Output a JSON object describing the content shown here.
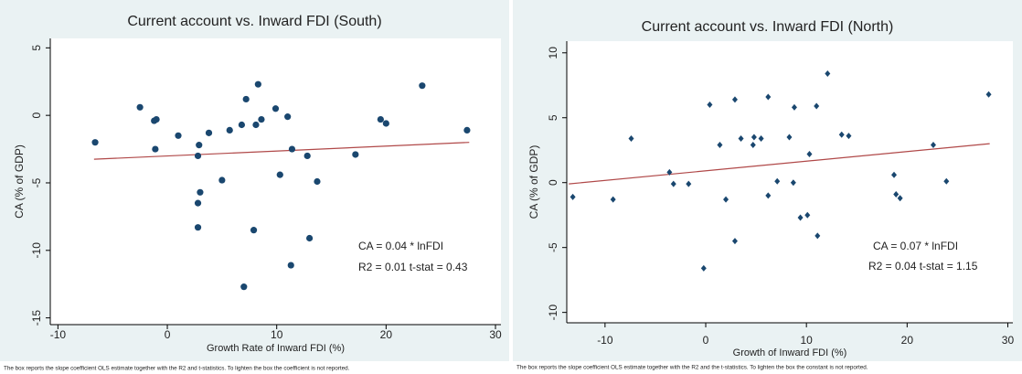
{
  "chart_data": [
    {
      "type": "scatter",
      "title": "Current account vs. Inward FDI (South)",
      "x_label": "Growth Rate of Inward FDI (%)",
      "y_label": "CA (% of GDP)",
      "marker": "circle",
      "color": "#1a476f",
      "x": [
        -6.6,
        -2.5,
        -1.2,
        -1.0,
        -1.1,
        1.0,
        2.9,
        2.8,
        3.0,
        2.8,
        2.8,
        3.8,
        5.0,
        5.7,
        6.8,
        7.2,
        8.1,
        8.3,
        8.6,
        7.9,
        9.9,
        11.0,
        10.3,
        11.4,
        12.8,
        13.7,
        13.0,
        11.3,
        7.0,
        17.2,
        19.5,
        20.0,
        23.3,
        27.4
      ],
      "values": [
        -2.0,
        0.6,
        -0.4,
        -0.3,
        -2.5,
        -1.5,
        -2.2,
        -3.0,
        -5.7,
        -6.5,
        -8.3,
        -1.3,
        -4.8,
        -1.1,
        -0.7,
        1.2,
        -0.7,
        2.3,
        -0.3,
        -8.5,
        0.5,
        -0.1,
        -4.4,
        -2.5,
        -3.0,
        -4.9,
        -9.1,
        -11.1,
        -12.7,
        -2.9,
        -0.3,
        -0.6,
        2.2,
        -1.1
      ],
      "trend_line": {
        "color": "#b04848",
        "x": [
          -6.7,
          27.6
        ],
        "values": [
          -3.25,
          -2.0
        ]
      },
      "annotations": [
        "CA = 0.04 * lnFDI",
        "R2 = 0.01   t-stat = 0.43"
      ],
      "footnote": "The box reports the slope coefficient OLS estimate together with the R2 and t-statistics. To lighten the box the coefficient is not reported.",
      "xlim": [
        -10.7,
        30.5
      ],
      "xticks": [
        -10,
        0,
        10,
        20,
        30
      ],
      "ylim": [
        -15.5,
        5.7
      ],
      "yticks": [
        -15,
        -10,
        -5,
        0,
        5
      ]
    },
    {
      "type": "scatter",
      "title": "Current account vs. Inward FDI (North)",
      "x_label": "Growth of Inward FDI (%)",
      "y_label": "CA (% of GDP)",
      "marker": "diamond",
      "color": "#1a476f",
      "x": [
        -13.2,
        -9.2,
        -7.4,
        -3.6,
        -3.2,
        -1.7,
        -0.2,
        0.4,
        1.4,
        2.0,
        2.9,
        2.9,
        3.5,
        4.8,
        4.7,
        5.5,
        6.2,
        6.2,
        7.1,
        8.3,
        8.8,
        8.7,
        9.4,
        10.1,
        10.3,
        11.0,
        11.1,
        12.1,
        13.5,
        14.2,
        18.7,
        18.9,
        19.3,
        22.6,
        23.9,
        28.1
      ],
      "values": [
        -1.1,
        -1.3,
        3.4,
        0.8,
        -0.1,
        -0.1,
        -6.6,
        6.0,
        2.9,
        -1.3,
        6.4,
        -4.5,
        3.4,
        3.5,
        2.9,
        3.4,
        6.6,
        -1.0,
        0.1,
        3.5,
        5.8,
        0.0,
        -2.7,
        -2.5,
        2.2,
        5.9,
        -4.1,
        8.4,
        3.7,
        3.6,
        0.6,
        -0.9,
        -1.2,
        2.9,
        0.1,
        6.8
      ],
      "trend_line": {
        "color": "#b04848",
        "x": [
          -13.6,
          28.2
        ],
        "values": [
          -0.1,
          3.0
        ]
      },
      "annotations": [
        "CA = 0.07 * lnFDI",
        "R2 = 0.04  t-stat = 1.15"
      ],
      "footnote": "The box reports the slope coefficient OLS estimate together with the R2 and the t-statistics. To lighten the box the constant is not reported.",
      "xlim": [
        -13.8,
        30.5
      ],
      "xticks": [
        -10,
        0,
        10,
        20,
        30
      ],
      "ylim": [
        -10.8,
        10.9
      ],
      "yticks": [
        -10,
        -5,
        0,
        5,
        10
      ]
    }
  ]
}
